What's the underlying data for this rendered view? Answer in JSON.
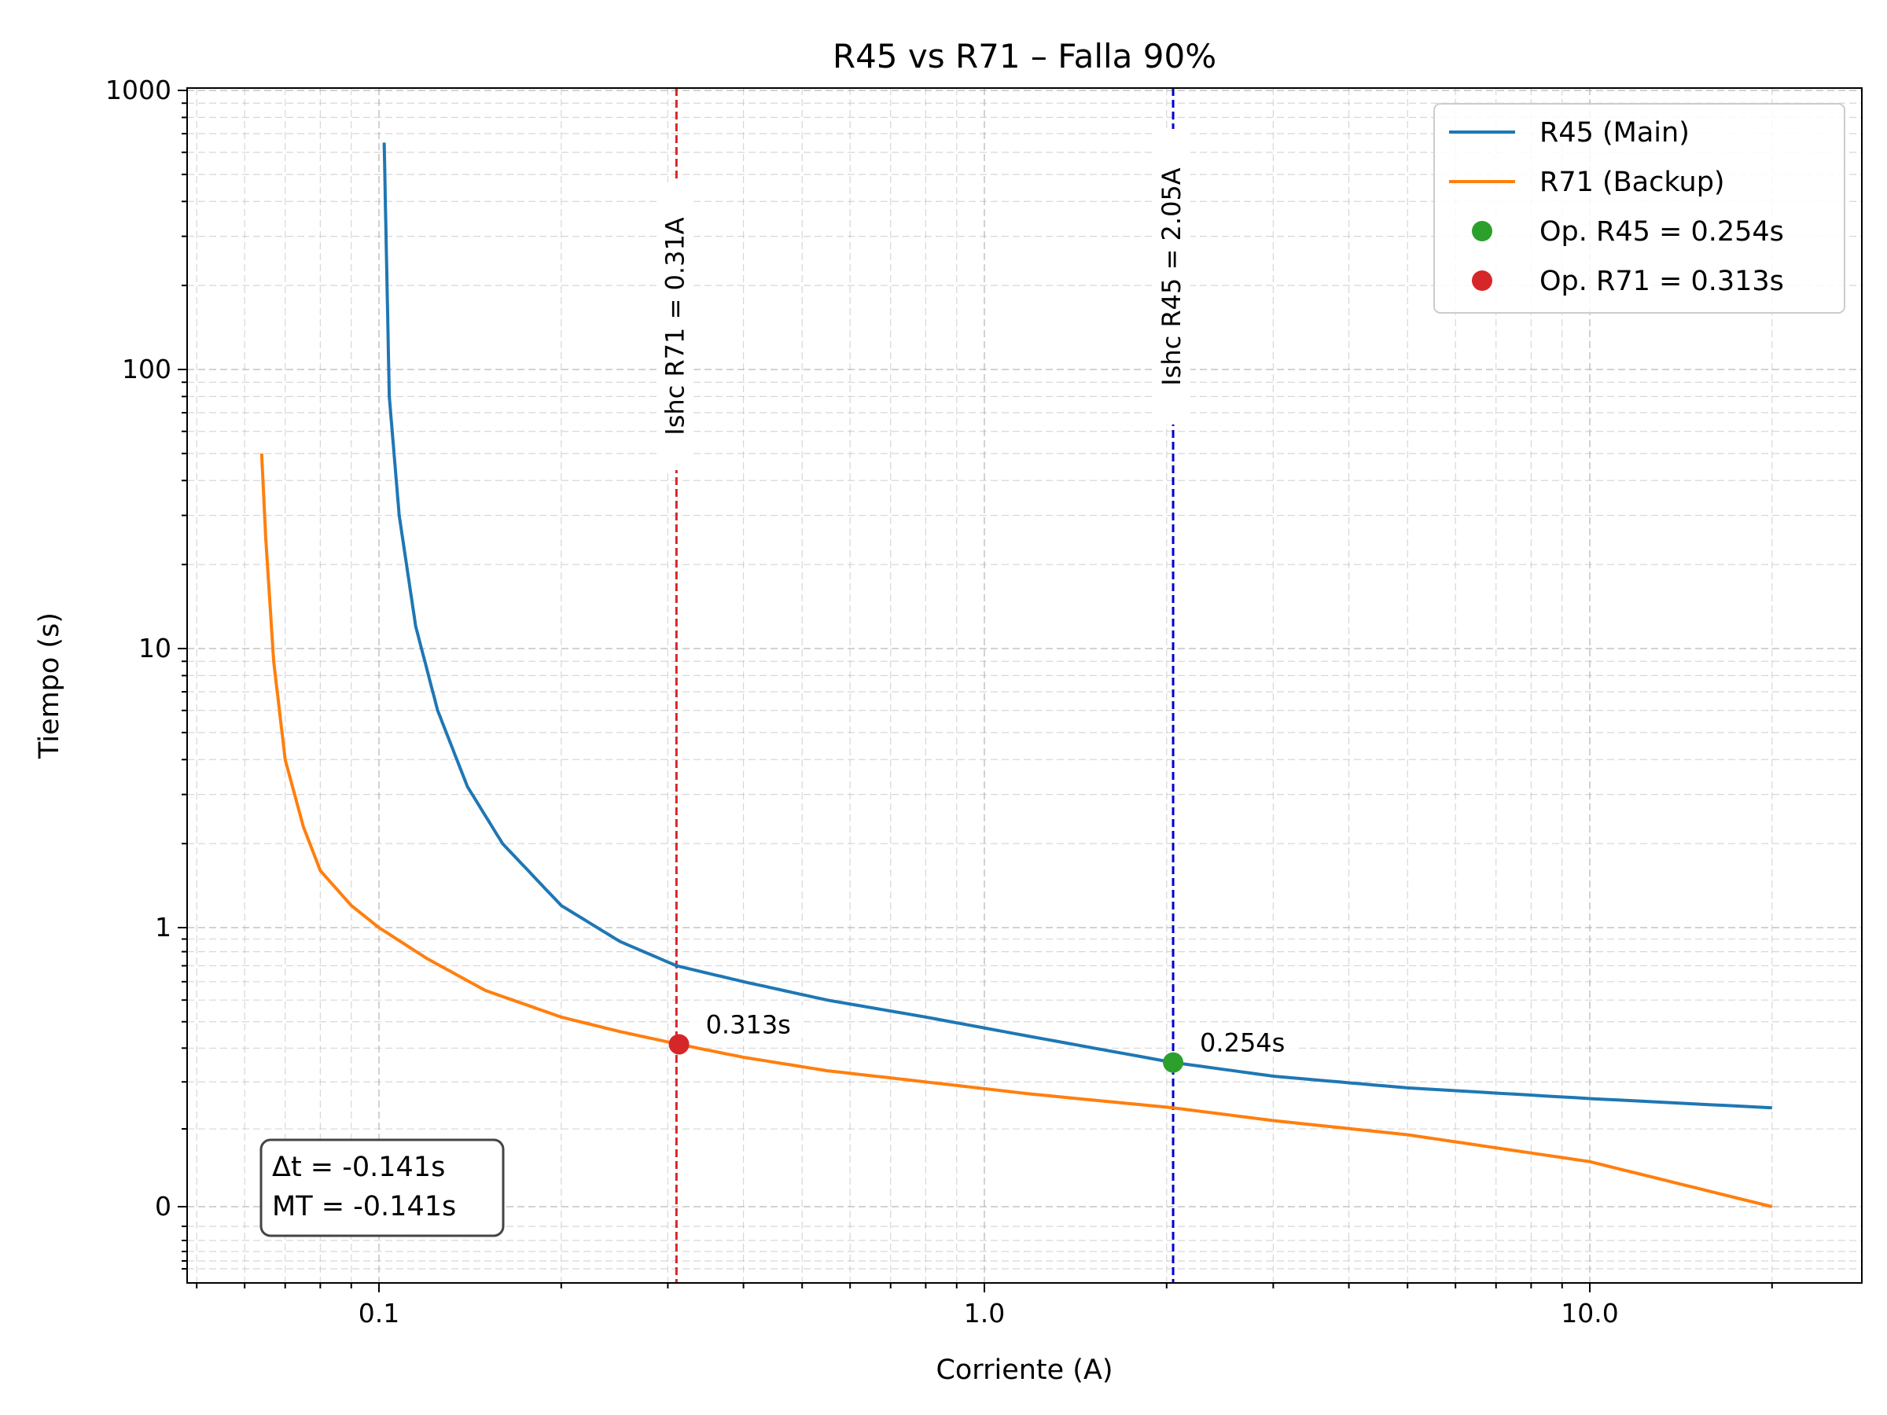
{
  "chart_data": {
    "type": "line",
    "title": "R45 vs R71 – Falla 90%",
    "xlabel": "Corriente (A)",
    "ylabel": "Tiempo (s)",
    "x_scale": "log",
    "y_scale": "log-like (offset)",
    "xlim": [
      0.05,
      25
    ],
    "x_ticks": [
      {
        "value": 0.1,
        "label": "0.1"
      },
      {
        "value": 1.0,
        "label": "1.0"
      },
      {
        "value": 10.0,
        "label": "10.0"
      }
    ],
    "y_ticks": [
      {
        "value": 1000,
        "label": "1000"
      },
      {
        "value": 100,
        "label": "100"
      },
      {
        "value": 10,
        "label": "10"
      },
      {
        "value": 1,
        "label": "1"
      },
      {
        "value": 0,
        "label": "0"
      }
    ],
    "grid": true,
    "legend_position": "top-right",
    "series": [
      {
        "name": "R45 (Main)",
        "color": "#1f77b4",
        "x": [
          0.102,
          0.104,
          0.108,
          0.115,
          0.125,
          0.14,
          0.16,
          0.2,
          0.25,
          0.31,
          0.4,
          0.55,
          0.8,
          1.2,
          2.05,
          3.0,
          5.0,
          10.0,
          20.0
        ],
        "y": [
          650,
          80,
          30,
          12,
          6,
          3.2,
          2.0,
          1.2,
          0.88,
          0.7,
          0.6,
          0.5,
          0.42,
          0.34,
          0.254,
          0.215,
          0.185,
          0.16,
          0.14
        ]
      },
      {
        "name": "R71 (Backup)",
        "color": "#ff7f0e",
        "x": [
          0.064,
          0.065,
          0.067,
          0.07,
          0.075,
          0.08,
          0.09,
          0.1,
          0.12,
          0.15,
          0.2,
          0.25,
          0.313,
          0.4,
          0.55,
          0.8,
          1.2,
          2.05,
          3.0,
          5.0,
          10.0,
          20.0
        ],
        "y": [
          50,
          25,
          9,
          4.0,
          2.3,
          1.6,
          1.2,
          1.0,
          0.75,
          0.55,
          0.42,
          0.36,
          0.313,
          0.27,
          0.23,
          0.2,
          0.17,
          0.14,
          0.115,
          0.09,
          0.05,
          0.0
        ]
      }
    ],
    "points": [
      {
        "name": "Op. R45 = 0.254s",
        "x": 2.05,
        "y": 0.254,
        "color": "#2ca02c",
        "label": "0.254s"
      },
      {
        "name": "Op. R71 = 0.313s",
        "x": 0.313,
        "y": 0.313,
        "color": "#d62728",
        "label": "0.313s"
      }
    ],
    "vlines": [
      {
        "x": 0.31,
        "color": "#d62728",
        "label": "Ishc R71 = 0.31A"
      },
      {
        "x": 2.05,
        "color": "#0000cd",
        "label": "Ishc R45 = 2.05A"
      }
    ],
    "annotation_box": [
      "Δt = -0.141s",
      "MT = -0.141s"
    ]
  }
}
